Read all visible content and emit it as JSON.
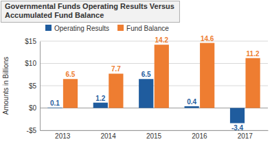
{
  "chart_data": {
    "type": "bar",
    "title": "Governmental Funds Operating Results Versus Accumulated Fund Balance",
    "y_label": "Amounts in Billions",
    "categories": [
      "2013",
      "2014",
      "2015",
      "2016",
      "2017"
    ],
    "series": [
      {
        "name": "Operating Results",
        "color": "#1f5c9e",
        "values": [
          0.1,
          1.2,
          6.5,
          0.4,
          -3.4
        ]
      },
      {
        "name": "Fund Balance",
        "color": "#ee7d31",
        "values": [
          6.5,
          7.7,
          14.2,
          14.6,
          11.2
        ]
      }
    ],
    "ylim": [
      -5,
      15
    ],
    "yticks": [
      {
        "value": -5,
        "label": "-$5"
      },
      {
        "value": 0,
        "label": "$0"
      },
      {
        "value": 5,
        "label": "$5"
      },
      {
        "value": 10,
        "label": "$10"
      },
      {
        "value": 15,
        "label": "$15"
      }
    ],
    "grid": true,
    "legend": "top-left",
    "data_labels": true
  }
}
